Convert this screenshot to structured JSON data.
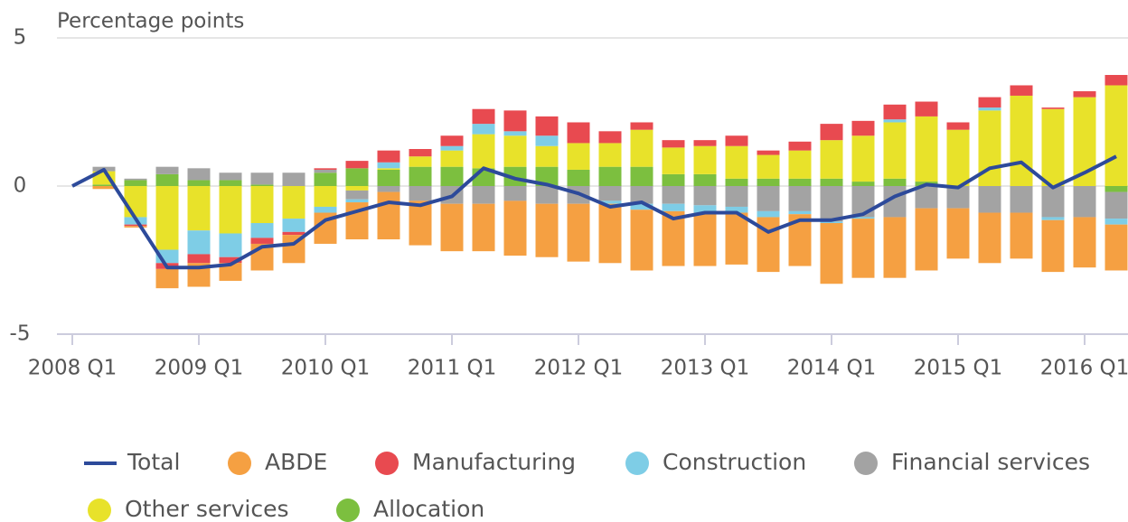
{
  "chart_data": {
    "type": "bar-line",
    "y_axis_label": "Percentage points",
    "categories": [
      "2008 Q1",
      null,
      null,
      null,
      "2009 Q1",
      null,
      null,
      null,
      "2010 Q1",
      null,
      null,
      null,
      "2011 Q1",
      null,
      null,
      null,
      "2012 Q1",
      null,
      null,
      null,
      "2013 Q1",
      null,
      null,
      null,
      "2014 Q1",
      null,
      null,
      null,
      "2015 Q1",
      null,
      null,
      null,
      "2016 Q1",
      null
    ],
    "ylim": [
      -5,
      5
    ],
    "yticks": [
      -5,
      0,
      5
    ],
    "grid": true,
    "series": [
      {
        "name": "Total",
        "type": "line",
        "color": "#2d4a9a",
        "values": [
          0,
          0.55,
          -1.1,
          -2.75,
          -2.75,
          -2.65,
          -2.05,
          -1.95,
          -1.15,
          -0.85,
          -0.55,
          -0.65,
          -0.35,
          0.6,
          0.25,
          0.05,
          -0.25,
          -0.7,
          -0.55,
          -1.1,
          -0.9,
          -0.9,
          -1.55,
          -1.15,
          -1.15,
          -0.95,
          -0.35,
          0.05,
          -0.05,
          0.6,
          0.8,
          -0.05,
          0.45,
          1.0
        ]
      },
      {
        "name": "ABDE",
        "type": "bar",
        "color": "#f5a042",
        "values": [
          0,
          -0.1,
          -0.05,
          -0.65,
          -0.8,
          -0.6,
          -0.9,
          -0.95,
          -1.05,
          -1.25,
          -1.6,
          -1.5,
          -1.6,
          -1.6,
          -1.85,
          -1.8,
          -1.95,
          -2.0,
          -2.05,
          -1.85,
          -1.8,
          -1.75,
          -1.85,
          -1.75,
          -2.05,
          -2.0,
          -2.05,
          -2.1,
          -1.7,
          -1.7,
          -1.55,
          -1.75,
          -1.7,
          -1.55
        ]
      },
      {
        "name": "Manufacturing",
        "type": "bar",
        "color": "#e84a50",
        "values": [
          0,
          0,
          -0.05,
          -0.2,
          -0.3,
          -0.2,
          -0.2,
          -0.1,
          0.05,
          0.25,
          0.4,
          0.25,
          0.35,
          0.5,
          0.7,
          0.65,
          0.7,
          0.4,
          0.25,
          0.25,
          0.2,
          0.35,
          0.15,
          0.3,
          0.55,
          0.5,
          0.5,
          0.5,
          0.25,
          0.35,
          0.35,
          0.05,
          0.2,
          0.35
        ]
      },
      {
        "name": "Construction",
        "type": "bar",
        "color": "#7ecde6",
        "values": [
          0,
          0,
          -0.25,
          -0.45,
          -0.8,
          -0.8,
          -0.5,
          -0.45,
          -0.2,
          -0.1,
          0.2,
          0,
          0.15,
          0.35,
          0.15,
          0.35,
          0,
          -0.1,
          -0.2,
          -0.25,
          -0.25,
          -0.2,
          -0.2,
          -0.1,
          -0.05,
          -0.05,
          0.1,
          0,
          0,
          0.1,
          0,
          -0.1,
          0,
          -0.2
        ]
      },
      {
        "name": "Financial services",
        "type": "bar",
        "color": "#a3a3a3",
        "values": [
          0,
          0.15,
          0.05,
          0.25,
          0.4,
          0.25,
          0.4,
          0.45,
          0.1,
          -0.3,
          -0.2,
          -0.5,
          -0.6,
          -0.6,
          -0.5,
          -0.6,
          -0.6,
          -0.5,
          -0.6,
          -0.6,
          -0.65,
          -0.7,
          -0.85,
          -0.85,
          -1.2,
          -1.05,
          -1.05,
          -0.75,
          -0.75,
          -0.9,
          -0.9,
          -1.05,
          -1.05,
          -0.9
        ]
      },
      {
        "name": "Other services",
        "type": "bar",
        "color": "#e8e22a",
        "values": [
          0,
          0.45,
          -1.05,
          -2.15,
          -1.5,
          -1.6,
          -1.25,
          -1.1,
          -0.7,
          -0.15,
          0.05,
          0.35,
          0.55,
          1.15,
          1.05,
          0.7,
          0.9,
          0.8,
          1.25,
          0.9,
          0.95,
          1.1,
          0.8,
          0.95,
          1.3,
          1.55,
          1.9,
          2.2,
          1.9,
          2.55,
          3.05,
          2.6,
          3.0,
          3.4
        ]
      },
      {
        "name": "Allocation",
        "type": "bar",
        "color": "#7cbf3f",
        "values": [
          0,
          0.05,
          0.2,
          0.4,
          0.2,
          0.2,
          0.05,
          0,
          0.45,
          0.6,
          0.55,
          0.65,
          0.65,
          0.6,
          0.65,
          0.65,
          0.55,
          0.65,
          0.65,
          0.4,
          0.4,
          0.25,
          0.25,
          0.25,
          0.25,
          0.15,
          0.25,
          0.15,
          0,
          0,
          0,
          0,
          0,
          -0.2
        ]
      }
    ]
  }
}
